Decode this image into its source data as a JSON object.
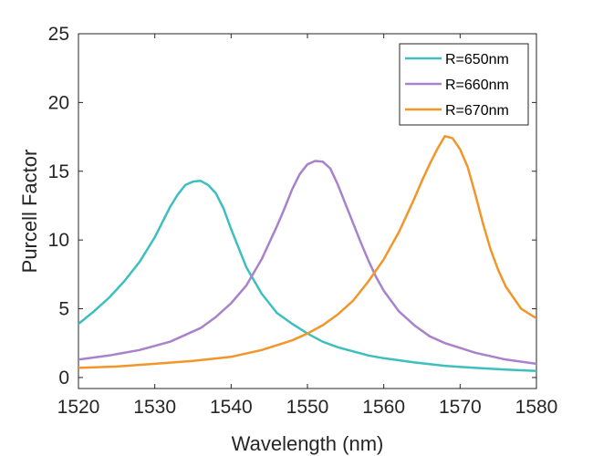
{
  "chart_data": {
    "type": "line",
    "title": "",
    "xlabel": "Wavelength (nm)",
    "ylabel": "Purcell Factor",
    "xlim": [
      1520,
      1580
    ],
    "ylim": [
      -0.8,
      25
    ],
    "xticks": [
      1520,
      1530,
      1540,
      1550,
      1560,
      1570,
      1580
    ],
    "yticks": [
      0,
      5,
      10,
      15,
      20,
      25
    ],
    "grid": false,
    "legend_position": "top-right",
    "series": [
      {
        "name": "R=650nm",
        "color": "#3ebfbf",
        "x": [
          1520,
          1522,
          1524,
          1526,
          1528,
          1530,
          1532,
          1533,
          1534,
          1535,
          1536,
          1537,
          1538,
          1539,
          1540,
          1541,
          1542,
          1544,
          1546,
          1548,
          1550,
          1552,
          1554,
          1556,
          1558,
          1560,
          1564,
          1568,
          1572,
          1576,
          1580
        ],
        "y": [
          3.9,
          4.8,
          5.8,
          7.0,
          8.4,
          10.2,
          12.4,
          13.3,
          14.0,
          14.25,
          14.3,
          14.0,
          13.4,
          12.3,
          10.8,
          9.4,
          8.0,
          6.1,
          4.7,
          3.9,
          3.2,
          2.6,
          2.2,
          1.9,
          1.6,
          1.4,
          1.1,
          0.85,
          0.7,
          0.58,
          0.48
        ]
      },
      {
        "name": "R=660nm",
        "color": "#a982cc",
        "x": [
          1520,
          1524,
          1528,
          1532,
          1536,
          1538,
          1540,
          1542,
          1544,
          1546,
          1547,
          1548,
          1549,
          1550,
          1551,
          1552,
          1553,
          1554,
          1555,
          1556,
          1557,
          1558,
          1559,
          1560,
          1562,
          1564,
          1566,
          1568,
          1572,
          1576,
          1580
        ],
        "y": [
          1.3,
          1.6,
          2.0,
          2.6,
          3.6,
          4.4,
          5.4,
          6.7,
          8.6,
          11.0,
          12.3,
          13.7,
          14.8,
          15.5,
          15.75,
          15.7,
          15.2,
          14.0,
          12.6,
          11.2,
          9.8,
          8.5,
          7.3,
          6.3,
          4.8,
          3.8,
          3.0,
          2.5,
          1.8,
          1.3,
          1.0
        ]
      },
      {
        "name": "R=670nm",
        "color": "#f2962a",
        "x": [
          1520,
          1525,
          1530,
          1535,
          1540,
          1544,
          1548,
          1550,
          1552,
          1554,
          1556,
          1558,
          1560,
          1561,
          1562,
          1563,
          1564,
          1565,
          1566,
          1567,
          1568,
          1569,
          1570,
          1571,
          1572,
          1573,
          1574,
          1575,
          1576,
          1578,
          1580
        ],
        "y": [
          0.7,
          0.8,
          1.0,
          1.2,
          1.5,
          2.0,
          2.7,
          3.2,
          3.8,
          4.6,
          5.6,
          7.0,
          8.6,
          9.6,
          10.6,
          11.8,
          13.0,
          14.3,
          15.5,
          16.6,
          17.55,
          17.4,
          16.6,
          15.3,
          13.3,
          11.2,
          9.3,
          7.8,
          6.6,
          5.0,
          4.3
        ]
      }
    ]
  }
}
